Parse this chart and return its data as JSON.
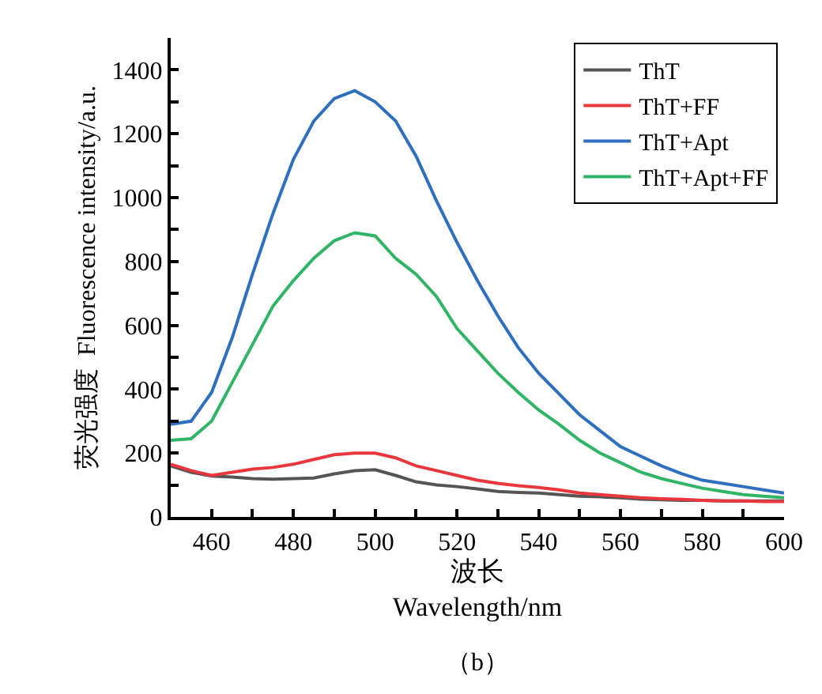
{
  "chart_data": {
    "type": "line",
    "xlabel": "波长\nWavelength/nm",
    "ylabel": "荧光强度  Fluorescence intensity/a.u.",
    "annotations": [
      "（b）"
    ],
    "x": [
      450,
      455,
      460,
      465,
      470,
      475,
      480,
      485,
      490,
      495,
      500,
      505,
      510,
      515,
      520,
      525,
      530,
      535,
      540,
      545,
      550,
      555,
      560,
      565,
      570,
      575,
      580,
      585,
      590,
      595,
      600
    ],
    "series": [
      {
        "name": "ThT",
        "color": "#555555",
        "values": [
          160,
          140,
          128,
          125,
          120,
          118,
          120,
          122,
          135,
          145,
          148,
          130,
          110,
          100,
          95,
          88,
          80,
          77,
          75,
          70,
          65,
          63,
          60,
          56,
          54,
          52,
          52,
          50,
          50,
          50,
          50
        ]
      },
      {
        "name": "ThT+FF",
        "color": "#e8383d",
        "values": [
          165,
          145,
          130,
          140,
          150,
          155,
          165,
          180,
          195,
          200,
          200,
          185,
          160,
          145,
          130,
          115,
          105,
          98,
          92,
          85,
          75,
          70,
          65,
          60,
          57,
          55,
          52,
          50,
          50,
          48,
          48
        ]
      },
      {
        "name": "ThT+Apt",
        "color": "#2e6fc0",
        "values": [
          290,
          300,
          390,
          560,
          760,
          950,
          1120,
          1240,
          1310,
          1335,
          1300,
          1240,
          1130,
          990,
          860,
          740,
          630,
          530,
          450,
          385,
          320,
          270,
          220,
          190,
          160,
          135,
          115,
          105,
          95,
          85,
          75
        ]
      },
      {
        "name": "ThT+Apt+FF",
        "color": "#30b566",
        "values": [
          240,
          245,
          300,
          420,
          540,
          660,
          740,
          810,
          865,
          890,
          880,
          810,
          760,
          690,
          590,
          520,
          450,
          390,
          335,
          290,
          240,
          200,
          170,
          140,
          120,
          105,
          90,
          80,
          70,
          65,
          60
        ]
      }
    ],
    "xlim": [
      450,
      600
    ],
    "xticks": [
      460,
      {
        "value": 470,
        "label": null
      },
      480,
      {
        "value": 490,
        "label": null
      },
      500,
      {
        "value": 510,
        "label": null
      },
      520,
      {
        "value": 530,
        "label": null
      },
      540,
      {
        "value": 550,
        "label": null
      },
      560,
      {
        "value": 570,
        "label": null
      },
      580,
      {
        "value": 590,
        "label": null
      },
      600
    ],
    "ylim": [
      0,
      1500
    ],
    "yticks": [
      0,
      {
        "value": 100,
        "label": null
      },
      200,
      {
        "value": 300,
        "label": null
      },
      400,
      {
        "value": 500,
        "label": null
      },
      600,
      {
        "value": 700,
        "label": null
      },
      800,
      {
        "value": 900,
        "label": null
      },
      1000,
      {
        "value": 1100,
        "label": null
      },
      1200,
      {
        "value": 1300,
        "label": null
      },
      1400
    ],
    "legend": "top right",
    "marker": "none",
    "line_style": "solid"
  }
}
